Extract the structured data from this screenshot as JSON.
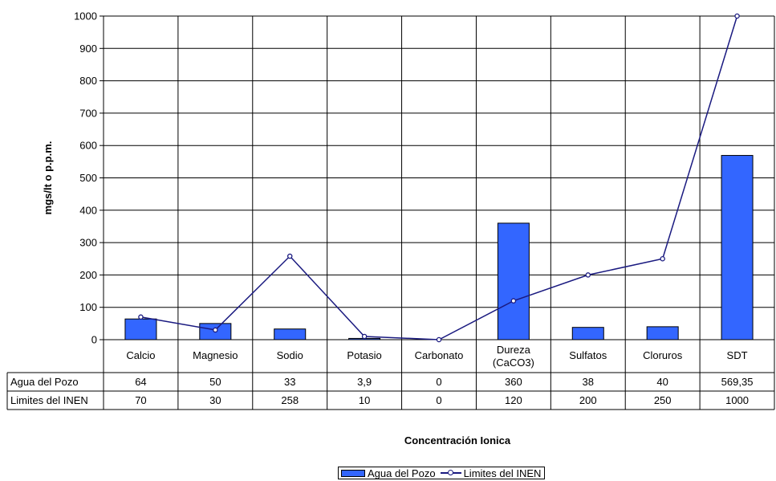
{
  "chart_data": {
    "type": "bar",
    "categories": [
      "Calcio",
      "Magnesio",
      "Sodio",
      "Potasio",
      "Carbonato",
      "Dureza (CaCO3)",
      "Sulfatos",
      "Cloruros",
      "SDT"
    ],
    "category_lines": [
      [
        "Calcio"
      ],
      [
        "Magnesio"
      ],
      [
        "Sodio"
      ],
      [
        "Potasio"
      ],
      [
        "Carbonato"
      ],
      [
        "Dureza",
        "(CaCO3)"
      ],
      [
        "Sulfatos"
      ],
      [
        "Cloruros"
      ],
      [
        "SDT"
      ]
    ],
    "series": [
      {
        "name": "Agua del Pozo",
        "render": "bar",
        "color": "#3366ff",
        "values": [
          64,
          50,
          33,
          3.9,
          0,
          360,
          38,
          40,
          569.35
        ],
        "labels": [
          "64",
          "50",
          "33",
          "3,9",
          "0",
          "360",
          "38",
          "40",
          "569,35"
        ]
      },
      {
        "name": "Limites del INEN",
        "render": "line",
        "color": "#1a1a80",
        "values": [
          70,
          30,
          258,
          10,
          0,
          120,
          200,
          250,
          1000
        ],
        "labels": [
          "70",
          "30",
          "258",
          "10",
          "0",
          "120",
          "200",
          "250",
          "1000"
        ]
      }
    ],
    "ylabel": "mgs/lt o p.p.m.",
    "xlabel": "Concentración Ionica",
    "ylim": [
      0,
      1000
    ],
    "yticks": [
      0,
      100,
      200,
      300,
      400,
      500,
      600,
      700,
      800,
      900,
      1000
    ],
    "grid": true,
    "legend": "bottom",
    "data_table": true
  }
}
